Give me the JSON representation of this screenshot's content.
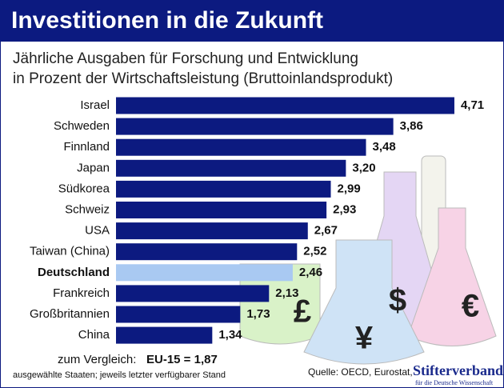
{
  "chart_data": {
    "type": "hbar",
    "title": "Investitionen in die Zukunft",
    "subtitle": [
      "Jährliche Ausgaben für Forschung und Entwicklung",
      "in Prozent der Wirtschaftsleistung (Bruttoinlandsprodukt)"
    ],
    "categories": [
      "Israel",
      "Schweden",
      "Finnland",
      "Japan",
      "Südkorea",
      "Schweiz",
      "USA",
      "Taiwan (China)",
      "Deutschland",
      "Frankreich",
      "Großbritannien",
      "China"
    ],
    "values": [
      4.71,
      3.86,
      3.48,
      3.2,
      2.99,
      2.93,
      2.67,
      2.52,
      2.46,
      2.13,
      1.73,
      1.34
    ],
    "value_labels": [
      "4,71",
      "3,86",
      "3,48",
      "3,20",
      "2,99",
      "2,93",
      "2,67",
      "2,52",
      "2,46",
      "2,13",
      "1,73",
      "1,34"
    ],
    "color": "#0c1a80",
    "highlight_category": "Deutschland",
    "highlight_color": "#a9c9f2",
    "comparison_prefix": "zum Vergleich:",
    "comparison": "EU-15 = 1,87",
    "note": "ausgewählte Staaten; jeweils letzter verfügbarer Stand",
    "source": "Quelle: OECD, Eurostat,",
    "publisher": "Stifterverband",
    "publisher_sub": "für die Deutsche Wissenschaft",
    "decor_symbols": [
      "£",
      "$",
      "¥",
      "€"
    ]
  }
}
